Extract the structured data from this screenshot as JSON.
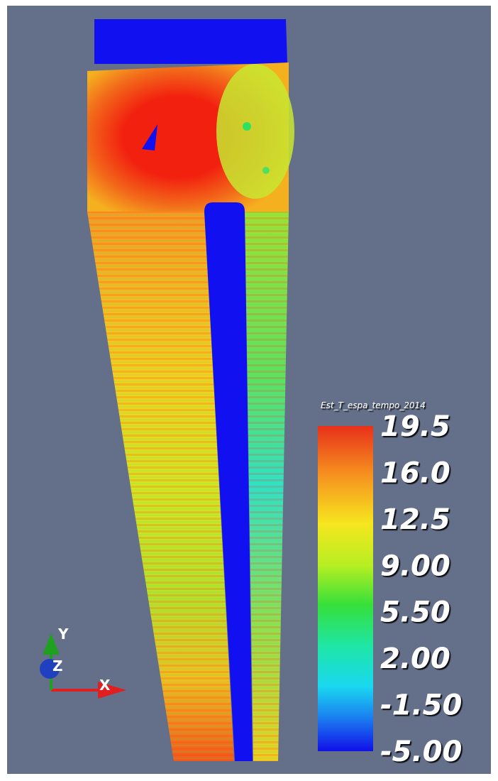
{
  "colorbar": {
    "title": "Est_T_espa_tempo_2014",
    "ticks": [
      "19.5",
      "16.0",
      "12.5",
      "9.00",
      "5.50",
      "2.00",
      "-1.50",
      "-5.00"
    ]
  },
  "axes": {
    "x": "X",
    "y": "Y",
    "z": "Z"
  }
}
